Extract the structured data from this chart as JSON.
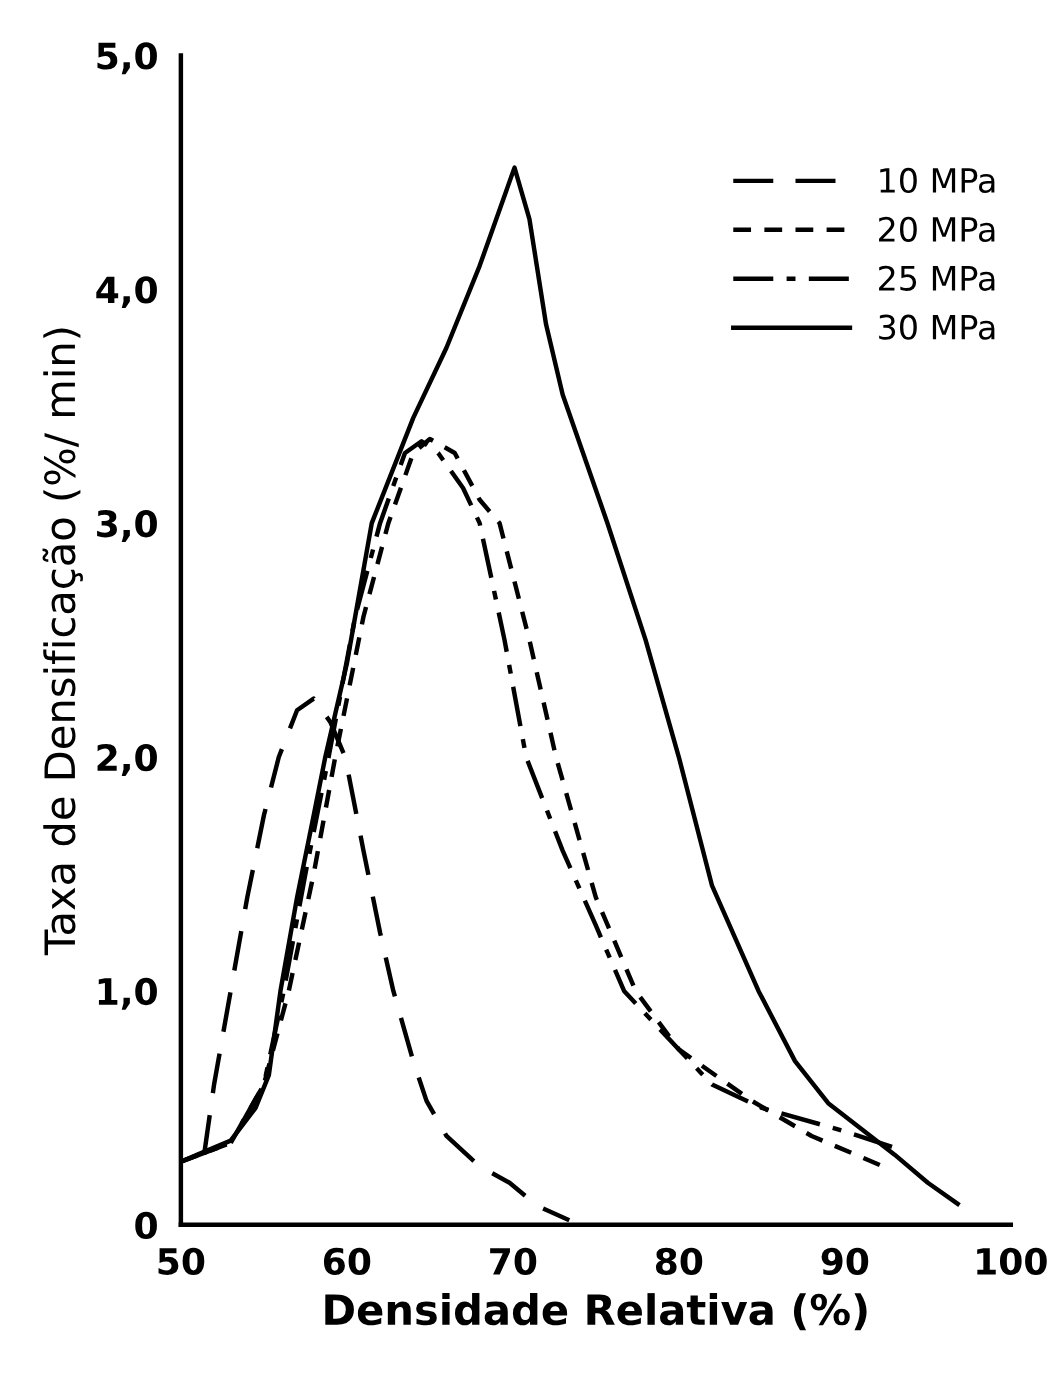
{
  "chart_data": {
    "type": "line",
    "xlabel": "Densidade Relativa (%)",
    "ylabel": "Taxa de Densificação (%/ min)",
    "xlim": [
      50,
      100
    ],
    "ylim": [
      0,
      5
    ],
    "xticks": [
      50,
      60,
      70,
      80,
      90,
      100
    ],
    "yticks": [
      {
        "value": 0,
        "label": "0"
      },
      {
        "value": 1,
        "label": "1,0"
      },
      {
        "value": 2,
        "label": "2,0"
      },
      {
        "value": 3,
        "label": "3,0"
      },
      {
        "value": 4,
        "label": "4,0"
      },
      {
        "value": 5,
        "label": "5,0"
      }
    ],
    "grid": false,
    "legend": "top right",
    "marker": "none",
    "series": [
      {
        "name": "10 MPa",
        "color": "#000000",
        "line_style": "dashed",
        "x": [
          51.4,
          52,
          53,
          54,
          55,
          55.9,
          57,
          58,
          59,
          59.9,
          61,
          62,
          62.8,
          64,
          64.8,
          66,
          68,
          69.8,
          71.5,
          73.4
        ],
        "values": [
          0.3,
          0.6,
          1.0,
          1.4,
          1.75,
          2.0,
          2.2,
          2.25,
          2.15,
          2.0,
          1.6,
          1.25,
          1.0,
          0.7,
          0.53,
          0.38,
          0.25,
          0.18,
          0.08,
          0.02
        ]
      },
      {
        "name": "20 MPa",
        "color": "#000000",
        "line_style": "shortdash",
        "x": [
          50,
          53,
          55,
          56.5,
          58,
          59.3,
          61,
          62.5,
          64,
          65,
          66.5,
          68,
          69.2,
          71,
          72.6,
          75,
          77.4,
          80,
          84.4,
          88,
          92.3
        ],
        "values": [
          0.27,
          0.35,
          0.6,
          1.0,
          1.5,
          2.0,
          2.6,
          3.0,
          3.3,
          3.36,
          3.3,
          3.1,
          3.0,
          2.5,
          2.0,
          1.4,
          1.0,
          0.75,
          0.53,
          0.38,
          0.25
        ]
      },
      {
        "name": "25 MPa",
        "color": "#000000",
        "line_style": "dashdot",
        "x": [
          50,
          53,
          55,
          56.2,
          57.5,
          58.9,
          60.5,
          62,
          63.5,
          64.5,
          65.5,
          67,
          68,
          69.5,
          70.8,
          73,
          75,
          76.7,
          80,
          82,
          85,
          90,
          93
        ],
        "values": [
          0.27,
          0.35,
          0.6,
          1.0,
          1.5,
          2.0,
          2.6,
          3.0,
          3.3,
          3.35,
          3.3,
          3.15,
          3.0,
          2.5,
          2.0,
          1.6,
          1.28,
          1.0,
          0.75,
          0.6,
          0.5,
          0.4,
          0.33
        ]
      },
      {
        "name": "30 MPa",
        "color": "#000000",
        "line_style": "solid",
        "x": [
          50,
          51,
          53,
          54.5,
          55.3,
          56,
          57,
          58,
          58.7,
          60,
          61.5,
          64,
          66,
          68,
          70.1,
          71,
          72,
          73,
          75.7,
          78,
          80,
          82,
          84.8,
          87,
          89,
          91,
          93,
          95,
          96.8
        ],
        "values": [
          0.27,
          0.3,
          0.36,
          0.5,
          0.64,
          1.0,
          1.4,
          1.75,
          2.0,
          2.4,
          3.0,
          3.45,
          3.75,
          4.1,
          4.52,
          4.3,
          3.85,
          3.55,
          3.0,
          2.5,
          2.0,
          1.45,
          1.0,
          0.7,
          0.52,
          0.41,
          0.3,
          0.18,
          0.09
        ]
      }
    ]
  }
}
